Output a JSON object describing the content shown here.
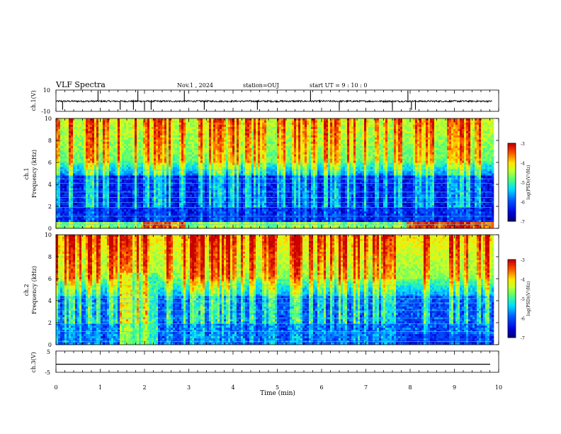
{
  "header": {
    "title": "VLF Spectra",
    "date": "Nov.1 , 2024",
    "station": "station=OUJ",
    "start": "start UT = 9 : 10 : 0"
  },
  "chart_data": [
    {
      "type": "line",
      "name": "ch1-waveform",
      "ylabel": "ch.1(V)",
      "ylim": [
        -10,
        10
      ],
      "ytick_labels": [
        "10",
        "-10"
      ],
      "xlim": [
        0,
        10
      ],
      "baseline": -0.5,
      "spikes_min": [
        0.15,
        0.95,
        1.45,
        1.75,
        1.85,
        2.0,
        2.15,
        2.9,
        3.35,
        4.55,
        5.75,
        6.4,
        7.6,
        7.95,
        8.03,
        8.12
      ]
    },
    {
      "type": "heatmap",
      "name": "ch1-spectrogram",
      "ylabel": "ch.1\nFrequency (kHz)",
      "ylim": [
        0,
        10
      ],
      "ytick_labels": [
        "0",
        "2",
        "4",
        "6",
        "8",
        "10"
      ],
      "xlim": [
        0,
        9.85
      ],
      "colorbar": {
        "label": "log(PSD)(V²/Hz)",
        "range": [
          -7,
          -3
        ],
        "ticks": [
          "-3",
          "-4",
          "-5",
          "-6",
          "-7"
        ]
      }
    },
    {
      "type": "heatmap",
      "name": "ch2-spectrogram",
      "ylabel": "ch.2\nFrequency (kHz)",
      "ylim": [
        0,
        10
      ],
      "ytick_labels": [
        "0",
        "2",
        "4",
        "6",
        "8",
        "10"
      ],
      "xlim": [
        0,
        9.85
      ],
      "colorbar": {
        "label": "log(PSD)(V²/Hz)",
        "range": [
          -7,
          -3
        ],
        "ticks": [
          "-3",
          "-4",
          "-5",
          "-6",
          "-7"
        ]
      }
    },
    {
      "type": "line",
      "name": "ch3-waveform",
      "ylabel": "ch.3(V)",
      "ylim": [
        -5,
        5
      ],
      "ytick_labels": [
        "5",
        "-5"
      ],
      "xlim": [
        0,
        10
      ],
      "values_constant": -1.2
    }
  ],
  "xaxis": {
    "label": "Time (min)",
    "ticks": [
      "0",
      "1",
      "2",
      "3",
      "4",
      "5",
      "6",
      "7",
      "8",
      "9",
      "10"
    ]
  }
}
